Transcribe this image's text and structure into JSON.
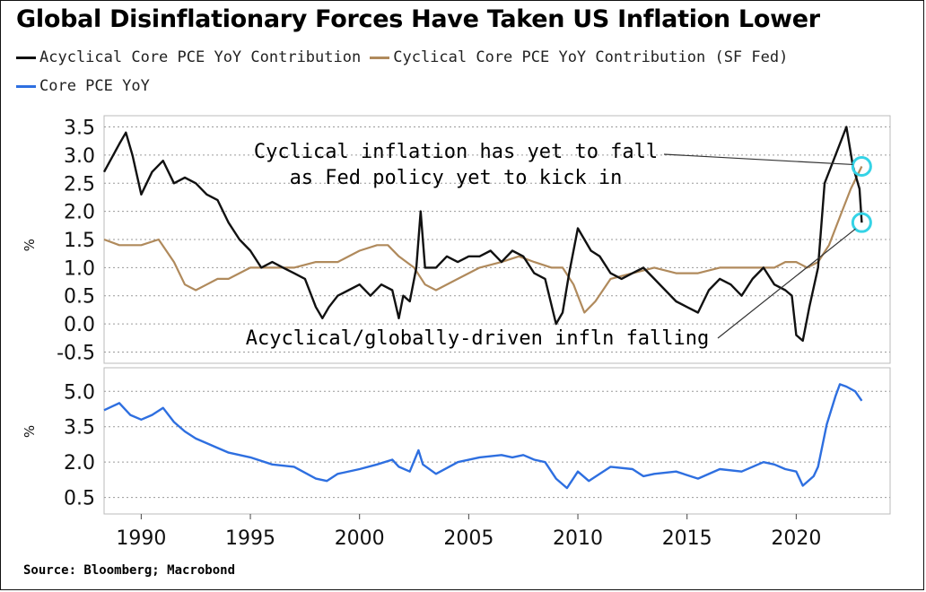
{
  "title": "Global Disinflationary Forces Have Taken US Inflation Lower",
  "source": "Source: Bloomberg; Macrobond",
  "colors": {
    "acyclical": "#111111",
    "cyclical": "#b08a5c",
    "core": "#2e6fe0",
    "circle": "#35d3e6"
  },
  "legend": [
    {
      "label": "Acyclical Core PCE YoY Contribution",
      "color": "#111111"
    },
    {
      "label": "Cyclical Core PCE YoY Contribution (SF Fed)",
      "color": "#b08a5c"
    },
    {
      "label": "Core PCE YoY",
      "color": "#2e6fe0"
    }
  ],
  "annotations": {
    "cyclical_line1": "Cyclical inflation has yet to fall",
    "cyclical_line2": "as Fed policy yet to kick in",
    "acyclical": "Acyclical/globally-driven infln falling"
  },
  "chart_data": [
    {
      "type": "line",
      "ylabel": "%",
      "ylim": [
        -0.7,
        3.7
      ],
      "yticks": [
        "3.5",
        "3.0",
        "2.5",
        "2.0",
        "1.5",
        "1.0",
        "0.5",
        "0.0",
        "-0.5"
      ],
      "ytick_values": [
        3.5,
        3.0,
        2.5,
        2.0,
        1.5,
        1.0,
        0.5,
        0.0,
        -0.5
      ],
      "grid": true,
      "series": [
        {
          "name": "Acyclical Core PCE YoY Contribution",
          "x": [
            1988.3,
            1989.0,
            1989.3,
            1989.6,
            1990.0,
            1990.5,
            1991.0,
            1991.5,
            1992.0,
            1992.5,
            1993.0,
            1993.5,
            1994.0,
            1994.5,
            1995.0,
            1995.5,
            1996.0,
            1996.5,
            1997.0,
            1997.5,
            1998.0,
            1998.3,
            1998.6,
            1999.0,
            1999.5,
            2000.0,
            2000.5,
            2001.0,
            2001.5,
            2001.8,
            2002.0,
            2002.3,
            2002.6,
            2002.8,
            2003.0,
            2003.5,
            2004.0,
            2004.5,
            2005.0,
            2005.5,
            2006.0,
            2006.5,
            2007.0,
            2007.5,
            2008.0,
            2008.5,
            2009.0,
            2009.3,
            2009.6,
            2010.0,
            2010.3,
            2010.6,
            2011.0,
            2011.5,
            2012.0,
            2012.5,
            2013.0,
            2013.5,
            2014.0,
            2014.5,
            2015.0,
            2015.5,
            2016.0,
            2016.5,
            2017.0,
            2017.5,
            2018.0,
            2018.5,
            2019.0,
            2019.5,
            2019.8,
            2020.0,
            2020.3,
            2020.6,
            2021.0,
            2021.3,
            2021.6,
            2022.0,
            2022.3,
            2022.6,
            2022.9,
            2023.0
          ],
          "values": [
            2.7,
            3.2,
            3.4,
            3.0,
            2.3,
            2.7,
            2.9,
            2.5,
            2.6,
            2.5,
            2.3,
            2.2,
            1.8,
            1.5,
            1.3,
            1.0,
            1.1,
            1.0,
            0.9,
            0.8,
            0.3,
            0.1,
            0.3,
            0.5,
            0.6,
            0.7,
            0.5,
            0.7,
            0.6,
            0.1,
            0.5,
            0.4,
            1.0,
            2.0,
            1.0,
            1.0,
            1.2,
            1.1,
            1.2,
            1.2,
            1.3,
            1.1,
            1.3,
            1.2,
            0.9,
            0.8,
            0.0,
            0.2,
            0.9,
            1.7,
            1.5,
            1.3,
            1.2,
            0.9,
            0.8,
            0.9,
            1.0,
            0.8,
            0.6,
            0.4,
            0.3,
            0.2,
            0.6,
            0.8,
            0.7,
            0.5,
            0.8,
            1.0,
            0.7,
            0.6,
            0.5,
            -0.2,
            -0.3,
            0.3,
            1.0,
            2.5,
            2.8,
            3.2,
            3.5,
            2.8,
            2.4,
            1.8
          ]
        },
        {
          "name": "Cyclical Core PCE YoY Contribution (SF Fed)",
          "x": [
            1988.3,
            1989.0,
            1990.0,
            1990.8,
            1991.5,
            1992.0,
            1992.5,
            1993.0,
            1993.5,
            1994.0,
            1995.0,
            1996.0,
            1997.0,
            1998.0,
            1999.0,
            2000.0,
            2000.8,
            2001.3,
            2001.8,
            2002.5,
            2003.0,
            2003.5,
            2004.5,
            2005.5,
            2006.5,
            2007.3,
            2008.0,
            2008.8,
            2009.3,
            2009.8,
            2010.3,
            2010.8,
            2011.5,
            2012.5,
            2013.5,
            2014.5,
            2015.5,
            2016.5,
            2017.5,
            2018.5,
            2019.0,
            2019.5,
            2020.0,
            2020.5,
            2021.0,
            2021.5,
            2022.0,
            2022.5,
            2023.0
          ],
          "values": [
            1.5,
            1.4,
            1.4,
            1.5,
            1.1,
            0.7,
            0.6,
            0.7,
            0.8,
            0.8,
            1.0,
            1.0,
            1.0,
            1.1,
            1.1,
            1.3,
            1.4,
            1.4,
            1.2,
            1.0,
            0.7,
            0.6,
            0.8,
            1.0,
            1.1,
            1.2,
            1.1,
            1.0,
            1.0,
            0.7,
            0.2,
            0.4,
            0.8,
            0.9,
            1.0,
            0.9,
            0.9,
            1.0,
            1.0,
            1.0,
            1.0,
            1.1,
            1.1,
            1.0,
            1.1,
            1.4,
            1.9,
            2.4,
            2.8
          ]
        }
      ]
    },
    {
      "type": "line",
      "ylabel": "%",
      "ylim": [
        -0.2,
        6.0
      ],
      "yticks": [
        "5.0",
        "3.5",
        "2.0",
        "0.5"
      ],
      "ytick_values": [
        5.0,
        3.5,
        2.0,
        0.5
      ],
      "xticks": [
        "1990",
        "1995",
        "2000",
        "2005",
        "2010",
        "2015",
        "2020"
      ],
      "xtick_values": [
        1990,
        1995,
        2000,
        2005,
        2010,
        2015,
        2020
      ],
      "grid": true,
      "series": [
        {
          "name": "Core PCE YoY",
          "x": [
            1988.3,
            1989.0,
            1989.5,
            1990.0,
            1990.5,
            1991.0,
            1991.5,
            1992.0,
            1992.5,
            1993.0,
            1993.5,
            1994.0,
            1995.0,
            1996.0,
            1997.0,
            1998.0,
            1998.5,
            1999.0,
            2000.0,
            2000.8,
            2001.5,
            2001.8,
            2002.3,
            2002.7,
            2002.9,
            2003.5,
            2004.5,
            2005.5,
            2006.5,
            2007.0,
            2007.5,
            2008.0,
            2008.5,
            2009.0,
            2009.5,
            2010.0,
            2010.5,
            2011.0,
            2011.5,
            2012.5,
            2013.0,
            2013.5,
            2014.5,
            2015.5,
            2016.5,
            2017.5,
            2018.5,
            2019.0,
            2019.5,
            2020.0,
            2020.3,
            2020.8,
            2021.0,
            2021.4,
            2021.8,
            2022.0,
            2022.3,
            2022.7,
            2023.0
          ],
          "values": [
            4.2,
            4.5,
            4.0,
            3.8,
            4.0,
            4.3,
            3.7,
            3.3,
            3.0,
            2.8,
            2.6,
            2.4,
            2.2,
            1.9,
            1.8,
            1.3,
            1.2,
            1.5,
            1.7,
            1.9,
            2.1,
            1.8,
            1.6,
            2.5,
            1.9,
            1.5,
            2.0,
            2.2,
            2.3,
            2.2,
            2.3,
            2.1,
            2.0,
            1.3,
            0.9,
            1.6,
            1.2,
            1.5,
            1.8,
            1.7,
            1.4,
            1.5,
            1.6,
            1.3,
            1.7,
            1.6,
            2.0,
            1.9,
            1.7,
            1.6,
            1.0,
            1.4,
            1.8,
            3.6,
            4.8,
            5.3,
            5.2,
            5.0,
            4.6
          ]
        }
      ]
    }
  ]
}
